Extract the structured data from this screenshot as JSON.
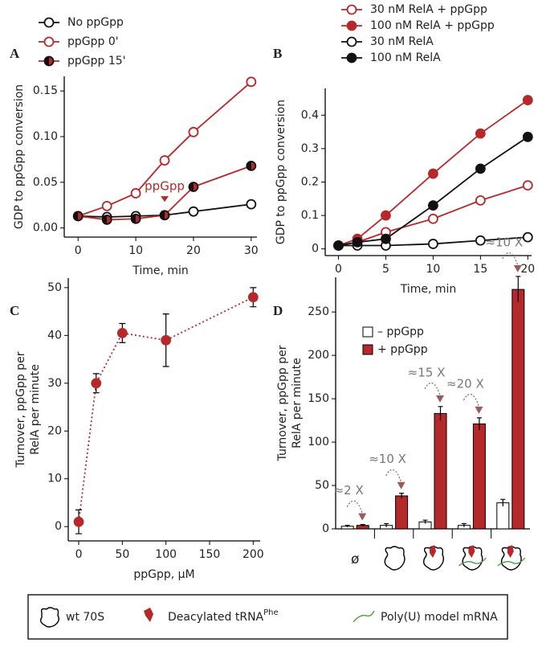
{
  "chart_data": [
    {
      "type": "line",
      "panel": "A",
      "xlabel": "Time, min",
      "ylabel": "GDP to ppGpp conversion",
      "x": [
        0,
        5,
        10,
        15,
        20,
        30
      ],
      "xlim": [
        -2.4,
        31
      ],
      "xticks": [
        0,
        10,
        20,
        30
      ],
      "ylim": [
        -0.01,
        0.166
      ],
      "yticks": [
        {
          "value": 0,
          "label": "0.00"
        },
        {
          "value": 0.05,
          "label": "0.05"
        },
        {
          "value": 0.1,
          "label": "0.10"
        },
        {
          "value": 0.15,
          "label": "0.15"
        }
      ],
      "series": [
        {
          "name": "No ppGpp",
          "color": "#111111",
          "marker": "open",
          "values": [
            0.013,
            0.012,
            0.013,
            0.014,
            0.018,
            0.026
          ]
        },
        {
          "name": "ppGpp 0'",
          "color": "#b5292a",
          "marker": "open",
          "values": [
            0.013,
            0.024,
            0.038,
            0.074,
            0.105,
            0.16
          ]
        },
        {
          "name": "ppGpp 15'",
          "color": "#b5292a",
          "marker": "half",
          "values": [
            0.013,
            0.009,
            0.01,
            0.014,
            0.045,
            0.068
          ]
        }
      ],
      "annotation": {
        "text": "ppGpp",
        "x": 15,
        "y": 0.026
      }
    },
    {
      "type": "line",
      "panel": "B",
      "xlabel": "Time, min",
      "ylabel": "GDP to ppGpp conversion",
      "x": [
        0,
        2,
        5,
        10,
        15,
        20
      ],
      "xlim": [
        -1.4,
        20.4
      ],
      "xticks": [
        0,
        5,
        10,
        15,
        20
      ],
      "ylim": [
        -0.02,
        0.48
      ],
      "yticks": [
        0,
        0.1,
        0.2,
        0.3,
        0.4
      ],
      "series": [
        {
          "name": "30 nM RelA + ppGpp",
          "color": "#b5292a",
          "marker": "open",
          "values": [
            0.01,
            0.02,
            0.05,
            0.09,
            0.145,
            0.19
          ]
        },
        {
          "name": "100 nM RelA + ppGpp",
          "color": "#b5292a",
          "marker": "filled",
          "values": [
            0.01,
            0.03,
            0.1,
            0.225,
            0.345,
            0.445
          ]
        },
        {
          "name": "30 nM RelA",
          "color": "#111111",
          "marker": "open",
          "values": [
            0.01,
            0.01,
            0.01,
            0.015,
            0.025,
            0.035
          ]
        },
        {
          "name": "100 nM RelA",
          "color": "#111111",
          "marker": "filled",
          "values": [
            0.01,
            0.02,
            0.03,
            0.13,
            0.24,
            0.335
          ]
        }
      ]
    },
    {
      "type": "line",
      "panel": "C",
      "xlabel": "ppGpp, μM",
      "ylabel": [
        "Turnover, ppGpp per",
        "RelA per minute"
      ],
      "x": [
        0,
        20,
        50,
        100,
        200
      ],
      "xlim": [
        -12,
        208
      ],
      "xticks": [
        0,
        50,
        100,
        150,
        200
      ],
      "ylim": [
        -3,
        52
      ],
      "yticks": [
        0,
        10,
        20,
        30,
        40,
        50
      ],
      "line_style": "dotted",
      "series": [
        {
          "color": "#b5292a",
          "marker": "filled",
          "values": [
            1,
            30,
            40.5,
            39,
            48
          ],
          "errors": [
            2.5,
            2,
            2,
            5.5,
            2
          ]
        }
      ]
    },
    {
      "type": "bar",
      "panel": "D",
      "ylabel": [
        "Turnover, ppGpp per",
        "RelA per minute"
      ],
      "categories": [
        "ø",
        null,
        null,
        null,
        null
      ],
      "ylim": [
        0,
        290
      ],
      "yticks": [
        0,
        50,
        100,
        150,
        200,
        250
      ],
      "series": [
        {
          "name": "– ppGpp",
          "color": "#ffffff",
          "values": [
            3,
            4,
            8,
            4,
            30
          ],
          "errors": [
            1,
            2,
            2,
            2,
            4
          ]
        },
        {
          "name": "+ ppGpp",
          "color": "#b5292a",
          "values": [
            4,
            38,
            133,
            121,
            276
          ],
          "errors": [
            1,
            3,
            8,
            7,
            15
          ]
        }
      ],
      "annotations": [
        "≈2 X",
        "≈10 X",
        "≈15 X",
        "≈20 X",
        "≈10 X"
      ]
    }
  ],
  "key": {
    "items": [
      {
        "text": "wt 70S"
      },
      {
        "text": "Deacylated tRNA",
        "sup": "Phe"
      },
      {
        "text": "Poly(U) model mRNA"
      }
    ]
  }
}
